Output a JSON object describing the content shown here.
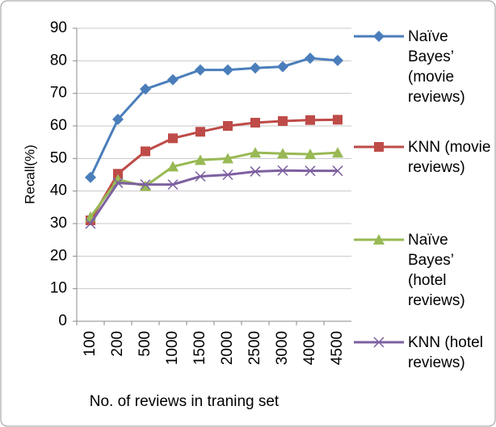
{
  "chart_data": {
    "type": "line",
    "x_label": "No. of reviews in traning set",
    "y_label": "Recall(%)",
    "categories": [
      "100",
      "200",
      "500",
      "1000",
      "1500",
      "2000",
      "2500",
      "3000",
      "4000",
      "4500"
    ],
    "series": [
      {
        "name": "Naïve Bayes’ (movie reviews)",
        "color": "#4a7ebb",
        "marker": "diamond",
        "values": [
          44.2,
          62,
          71.3,
          74.2,
          77.2,
          77.2,
          77.8,
          78.2,
          80.8,
          80.1
        ]
      },
      {
        "name": "KNN (movie reviews)",
        "color": "#be4b48",
        "marker": "square",
        "values": [
          31,
          45.3,
          52.2,
          56.2,
          58.2,
          60,
          61,
          61.5,
          61.8,
          61.9
        ]
      },
      {
        "name": "Naïve Bayes’ (hotel reviews)",
        "color": "#98b954",
        "marker": "triangle",
        "values": [
          32,
          43.5,
          41.5,
          47.5,
          49.5,
          50,
          51.8,
          51.5,
          51.3,
          51.8
        ]
      },
      {
        "name": "KNN (hotel reviews)",
        "color": "#7d60a0",
        "marker": "x",
        "values": [
          30,
          42.5,
          42,
          42,
          44.5,
          45,
          46,
          46.3,
          46.2,
          46.2
        ]
      }
    ],
    "ylim": [
      0,
      90
    ],
    "yticks": [
      0,
      10,
      20,
      30,
      40,
      50,
      60,
      70,
      80,
      90
    ],
    "grid": true
  }
}
